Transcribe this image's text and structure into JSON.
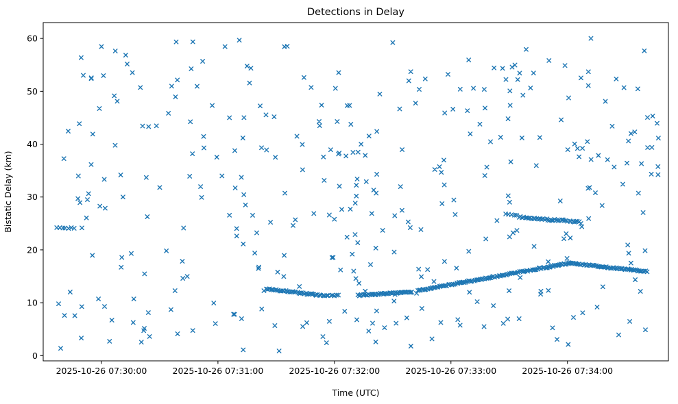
{
  "chart_data": {
    "type": "scatter",
    "title": "Detections in Delay",
    "xlabel": "Time (UTC)",
    "ylabel": "Bistatic Delay (km)",
    "marker": "x",
    "marker_color": "#1f77b4",
    "grid": false,
    "legend": "none",
    "x_axis": {
      "xlim": [
        -30,
        292
      ],
      "tick_seconds": [
        0,
        60,
        120,
        180,
        240
      ],
      "tick_labels": [
        "2025-10-26 07:30:00",
        "2025-10-26 07:31:00",
        "2025-10-26 07:32:00",
        "2025-10-26 07:33:00",
        "2025-10-26 07:34:00"
      ]
    },
    "y_axis": {
      "ylim": [
        -1,
        63
      ],
      "ticks": [
        0,
        10,
        20,
        30,
        40,
        50,
        60
      ]
    },
    "series": [
      {
        "name": "detections-background",
        "style": "random",
        "seed": 20251026,
        "count": 370,
        "t_range": [
          -23,
          287
        ],
        "y_range": [
          0.8,
          60.3
        ]
      },
      {
        "name": "cluster-left-edge",
        "style": "segments",
        "seed": 11,
        "jitter": 0.25,
        "segments": [
          [
            -23,
            -14,
            24.2,
            24.0,
            7
          ]
        ]
      },
      {
        "name": "track-descending",
        "style": "segments",
        "seed": 21,
        "jitter": 0.12,
        "segments": [
          [
            85,
            113,
            12.6,
            11.4,
            38
          ],
          [
            113,
            122,
            11.4,
            11.35,
            10
          ]
        ]
      },
      {
        "name": "track-rising-main",
        "style": "segments",
        "seed": 31,
        "jitter": 0.12,
        "segments": [
          [
            132,
            160,
            11.4,
            12.0,
            42
          ],
          [
            163,
            241,
            12.3,
            17.5,
            115
          ],
          [
            241,
            281,
            17.5,
            15.9,
            62
          ]
        ]
      },
      {
        "name": "track-flat-26",
        "style": "segments",
        "seed": 41,
        "jitter": 0.15,
        "segments": [
          [
            208,
            214,
            26.8,
            26.5,
            5
          ],
          [
            215,
            246,
            26.2,
            25.3,
            38
          ]
        ]
      }
    ]
  }
}
